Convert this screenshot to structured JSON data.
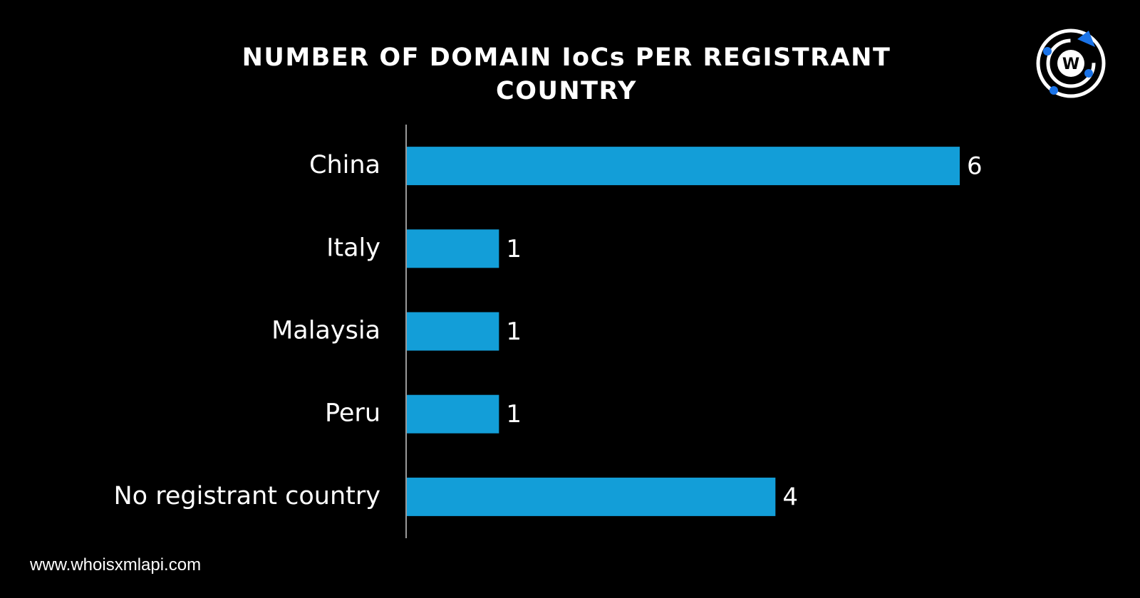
{
  "chart_data": {
    "type": "bar",
    "orientation": "horizontal",
    "title": "NUMBER OF DOMAIN IoCs PER REGISTRANT COUNTRY",
    "categories": [
      "China",
      "Italy",
      "Malaysia",
      "Peru",
      "No registrant country"
    ],
    "values": [
      6,
      1,
      1,
      1,
      4
    ],
    "color": "#139ed8",
    "xlim": [
      0,
      6
    ]
  },
  "source": "www.whoisxmlapi.com",
  "logo_text": "W"
}
